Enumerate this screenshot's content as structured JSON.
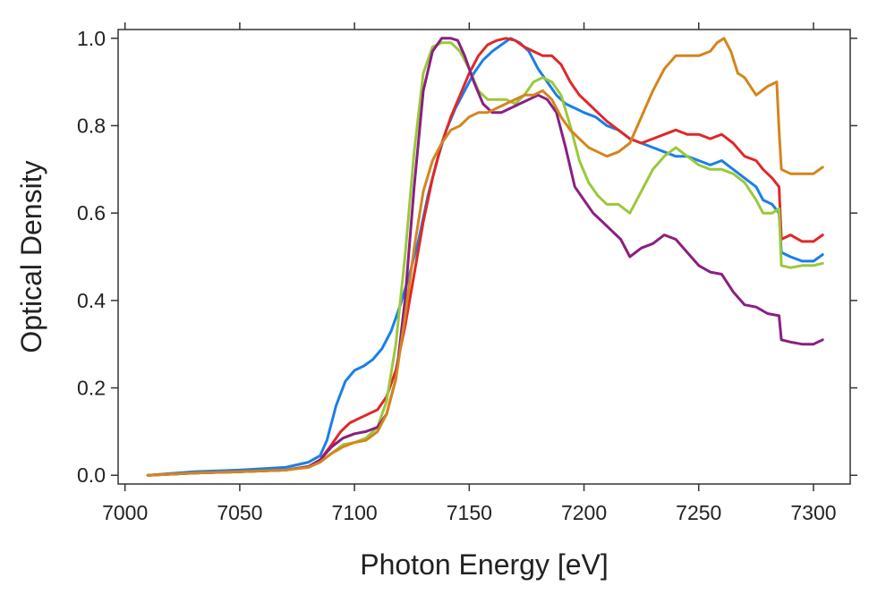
{
  "chart_data": {
    "type": "line",
    "title": "",
    "xlabel": "Photon Energy [eV]",
    "ylabel": "Optical Density",
    "xlim": [
      6997,
      7316
    ],
    "ylim": [
      -0.02,
      1.02
    ],
    "xticks": [
      7000,
      7050,
      7100,
      7150,
      7200,
      7250,
      7300
    ],
    "yticks": [
      0.0,
      0.2,
      0.4,
      0.6,
      0.8,
      1.0
    ],
    "xtick_labels": [
      "7000",
      "7050",
      "7100",
      "7150",
      "7200",
      "7250",
      "7300"
    ],
    "ytick_labels": [
      "0.0",
      "0.2",
      "0.4",
      "0.6",
      "0.8",
      "1.0"
    ],
    "grid": false,
    "legend": "none",
    "series": [
      {
        "color": "#1a7fe8",
        "x": [
          7010,
          7030,
          7050,
          7070,
          7080,
          7085,
          7088,
          7092,
          7096,
          7100,
          7104,
          7108,
          7112,
          7116,
          7120,
          7124,
          7128,
          7132,
          7136,
          7140,
          7144,
          7148,
          7152,
          7156,
          7160,
          7164,
          7168,
          7172,
          7176,
          7180,
          7184,
          7188,
          7192,
          7196,
          7200,
          7205,
          7210,
          7215,
          7220,
          7225,
          7230,
          7235,
          7240,
          7245,
          7250,
          7255,
          7260,
          7265,
          7270,
          7275,
          7278,
          7282,
          7285,
          7286,
          7290,
          7295,
          7300,
          7304
        ],
        "y": [
          0.0,
          0.008,
          0.012,
          0.018,
          0.03,
          0.045,
          0.08,
          0.16,
          0.215,
          0.24,
          0.25,
          0.265,
          0.29,
          0.33,
          0.39,
          0.46,
          0.54,
          0.64,
          0.72,
          0.79,
          0.84,
          0.88,
          0.92,
          0.95,
          0.97,
          0.985,
          1.0,
          0.99,
          0.97,
          0.93,
          0.9,
          0.87,
          0.85,
          0.84,
          0.83,
          0.82,
          0.8,
          0.79,
          0.77,
          0.76,
          0.75,
          0.74,
          0.73,
          0.73,
          0.72,
          0.71,
          0.72,
          0.7,
          0.68,
          0.66,
          0.63,
          0.62,
          0.6,
          0.51,
          0.5,
          0.49,
          0.49,
          0.505
        ]
      },
      {
        "color": "#e02828",
        "x": [
          7010,
          7030,
          7050,
          7070,
          7080,
          7085,
          7090,
          7094,
          7098,
          7102,
          7106,
          7110,
          7114,
          7118,
          7122,
          7126,
          7130,
          7134,
          7138,
          7142,
          7146,
          7150,
          7154,
          7158,
          7162,
          7166,
          7170,
          7174,
          7178,
          7182,
          7186,
          7190,
          7194,
          7198,
          7202,
          7206,
          7210,
          7215,
          7220,
          7225,
          7230,
          7235,
          7240,
          7245,
          7250,
          7255,
          7260,
          7265,
          7270,
          7275,
          7278,
          7282,
          7285,
          7286,
          7290,
          7295,
          7300,
          7304
        ],
        "y": [
          0.0,
          0.005,
          0.008,
          0.012,
          0.02,
          0.035,
          0.07,
          0.1,
          0.12,
          0.13,
          0.14,
          0.15,
          0.18,
          0.24,
          0.34,
          0.46,
          0.58,
          0.68,
          0.76,
          0.82,
          0.87,
          0.92,
          0.96,
          0.985,
          0.995,
          1.0,
          0.995,
          0.98,
          0.97,
          0.96,
          0.96,
          0.94,
          0.9,
          0.87,
          0.85,
          0.83,
          0.81,
          0.79,
          0.77,
          0.76,
          0.77,
          0.78,
          0.79,
          0.78,
          0.78,
          0.77,
          0.78,
          0.76,
          0.73,
          0.72,
          0.7,
          0.68,
          0.66,
          0.54,
          0.55,
          0.535,
          0.535,
          0.55
        ]
      },
      {
        "color": "#9ac93a",
        "x": [
          7010,
          7030,
          7050,
          7070,
          7080,
          7085,
          7090,
          7095,
          7100,
          7105,
          7110,
          7114,
          7118,
          7122,
          7126,
          7130,
          7134,
          7138,
          7142,
          7146,
          7150,
          7154,
          7158,
          7162,
          7166,
          7170,
          7174,
          7178,
          7182,
          7186,
          7190,
          7194,
          7198,
          7202,
          7206,
          7210,
          7215,
          7220,
          7225,
          7230,
          7235,
          7240,
          7245,
          7250,
          7255,
          7260,
          7265,
          7270,
          7275,
          7278,
          7282,
          7285,
          7286,
          7290,
          7295,
          7300,
          7304
        ],
        "y": [
          0.0,
          0.005,
          0.008,
          0.012,
          0.02,
          0.03,
          0.05,
          0.07,
          0.075,
          0.085,
          0.11,
          0.17,
          0.3,
          0.5,
          0.74,
          0.92,
          0.98,
          0.99,
          0.99,
          0.97,
          0.93,
          0.88,
          0.86,
          0.86,
          0.86,
          0.85,
          0.87,
          0.9,
          0.91,
          0.9,
          0.87,
          0.8,
          0.72,
          0.67,
          0.64,
          0.62,
          0.62,
          0.6,
          0.65,
          0.7,
          0.73,
          0.75,
          0.73,
          0.71,
          0.7,
          0.7,
          0.69,
          0.67,
          0.63,
          0.6,
          0.6,
          0.61,
          0.48,
          0.475,
          0.48,
          0.48,
          0.485
        ]
      },
      {
        "color": "#8a1f82",
        "x": [
          7010,
          7030,
          7050,
          7070,
          7080,
          7085,
          7090,
          7095,
          7100,
          7105,
          7110,
          7114,
          7118,
          7122,
          7126,
          7130,
          7134,
          7138,
          7142,
          7145,
          7148,
          7152,
          7156,
          7160,
          7164,
          7168,
          7172,
          7176,
          7180,
          7184,
          7188,
          7192,
          7196,
          7200,
          7204,
          7208,
          7212,
          7216,
          7220,
          7225,
          7230,
          7235,
          7240,
          7245,
          7250,
          7255,
          7260,
          7265,
          7270,
          7275,
          7280,
          7285,
          7286,
          7290,
          7295,
          7300,
          7304
        ],
        "y": [
          0.0,
          0.005,
          0.008,
          0.012,
          0.02,
          0.035,
          0.065,
          0.085,
          0.095,
          0.1,
          0.11,
          0.14,
          0.22,
          0.4,
          0.66,
          0.88,
          0.97,
          1.0,
          1.0,
          0.995,
          0.96,
          0.9,
          0.85,
          0.83,
          0.83,
          0.84,
          0.85,
          0.86,
          0.87,
          0.86,
          0.83,
          0.75,
          0.66,
          0.63,
          0.6,
          0.58,
          0.56,
          0.54,
          0.5,
          0.52,
          0.53,
          0.55,
          0.54,
          0.51,
          0.48,
          0.465,
          0.46,
          0.42,
          0.39,
          0.385,
          0.37,
          0.365,
          0.31,
          0.305,
          0.3,
          0.3,
          0.31
        ]
      },
      {
        "color": "#d4851d",
        "x": [
          7010,
          7030,
          7050,
          7070,
          7080,
          7085,
          7090,
          7095,
          7100,
          7105,
          7110,
          7114,
          7118,
          7122,
          7126,
          7130,
          7134,
          7138,
          7142,
          7146,
          7150,
          7154,
          7158,
          7162,
          7166,
          7170,
          7174,
          7178,
          7182,
          7186,
          7190,
          7194,
          7198,
          7202,
          7206,
          7210,
          7215,
          7220,
          7225,
          7230,
          7235,
          7240,
          7245,
          7250,
          7255,
          7258,
          7261,
          7264,
          7267,
          7270,
          7275,
          7280,
          7284,
          7285,
          7286,
          7290,
          7295,
          7300,
          7304
        ],
        "y": [
          0.0,
          0.005,
          0.008,
          0.012,
          0.018,
          0.03,
          0.05,
          0.065,
          0.075,
          0.08,
          0.1,
          0.14,
          0.22,
          0.36,
          0.52,
          0.65,
          0.72,
          0.76,
          0.79,
          0.8,
          0.82,
          0.83,
          0.83,
          0.84,
          0.85,
          0.86,
          0.87,
          0.87,
          0.88,
          0.86,
          0.82,
          0.79,
          0.77,
          0.75,
          0.74,
          0.73,
          0.74,
          0.76,
          0.82,
          0.88,
          0.93,
          0.96,
          0.96,
          0.96,
          0.97,
          0.99,
          1.0,
          0.97,
          0.92,
          0.91,
          0.87,
          0.89,
          0.9,
          0.79,
          0.7,
          0.69,
          0.69,
          0.69,
          0.705
        ]
      }
    ]
  }
}
